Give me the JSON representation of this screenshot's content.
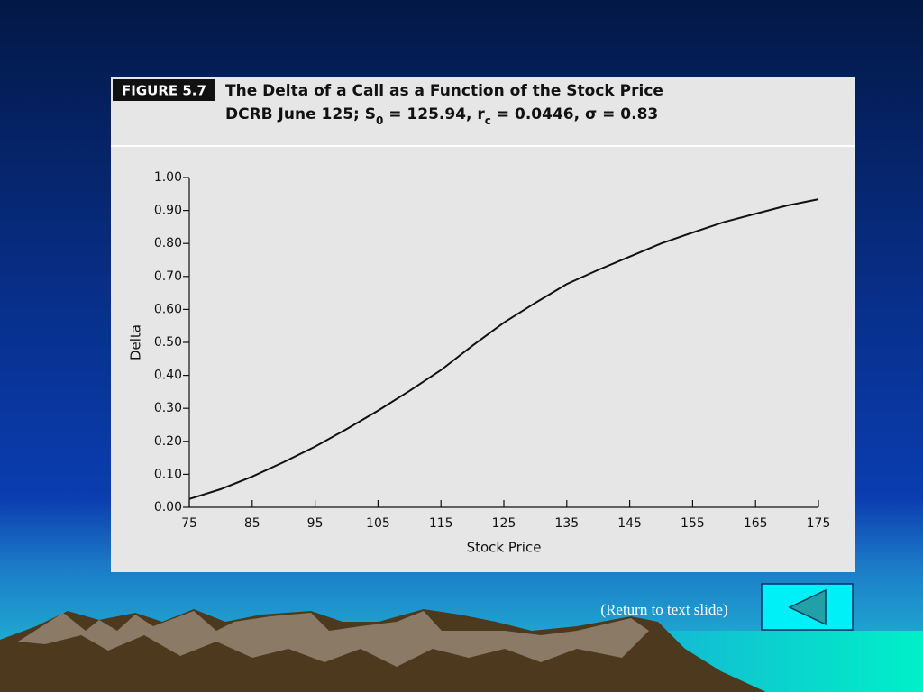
{
  "figure_label": "FIGURE 5.7",
  "chart_data": {
    "type": "line",
    "title": "The Delta of a Call as a Function of the Stock Price",
    "subtitle": [
      "DCRB June 125; S",
      "0",
      " = 125.94, r",
      "c",
      " = 0.0446, σ = 0.83"
    ],
    "x_label": "Stock Price",
    "y_label": "Delta",
    "x": [
      75,
      80,
      85,
      90,
      95,
      100,
      105,
      110,
      115,
      120,
      125,
      130,
      135,
      140,
      145,
      150,
      155,
      160,
      165,
      170,
      175
    ],
    "values": [
      0.025,
      0.055,
      0.093,
      0.137,
      0.184,
      0.237,
      0.293,
      0.353,
      0.416,
      0.49,
      0.56,
      0.62,
      0.677,
      0.72,
      0.76,
      0.8,
      0.833,
      0.865,
      0.89,
      0.915,
      0.934
    ],
    "color": "#111111",
    "xlim": [
      75,
      175
    ],
    "xticks": [
      75,
      85,
      95,
      105,
      115,
      125,
      135,
      145,
      155,
      165,
      175
    ],
    "ylim": [
      0,
      1
    ],
    "yticks": [
      {
        "value": 0,
        "label": "0.00"
      },
      {
        "value": 0.1,
        "label": "0.10"
      },
      {
        "value": 0.2,
        "label": "0.20"
      },
      {
        "value": 0.3,
        "label": "0.30"
      },
      {
        "value": 0.4,
        "label": "0.40"
      },
      {
        "value": 0.5,
        "label": "0.50"
      },
      {
        "value": 0.6,
        "label": "0.60"
      },
      {
        "value": 0.7,
        "label": "0.70"
      },
      {
        "value": 0.8,
        "label": "0.80"
      },
      {
        "value": 0.9,
        "label": "0.90"
      },
      {
        "value": 1,
        "label": "1.00"
      }
    ]
  },
  "nav": {
    "return_link": "(Return to text slide)"
  }
}
